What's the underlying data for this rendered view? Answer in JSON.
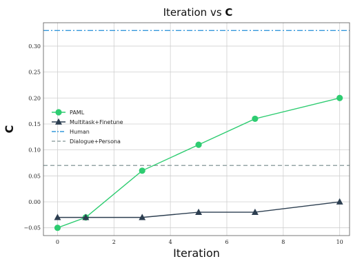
{
  "chart_data": {
    "type": "line",
    "title": "Iteration vs ",
    "title_bold": "C",
    "xlabel": "Iteration",
    "ylabel": "C",
    "xlim": [
      -0.5,
      10.35
    ],
    "ylim": [
      -0.065,
      0.345
    ],
    "xticks": [
      0,
      2,
      4,
      6,
      8,
      10
    ],
    "yticks": [
      -0.05,
      0.0,
      0.05,
      0.1,
      0.15,
      0.2,
      0.25,
      0.3
    ],
    "ytick_labels": [
      "−0.05",
      "0.00",
      "0.05",
      "0.10",
      "0.15",
      "0.20",
      "0.25",
      "0.30"
    ],
    "grid": true,
    "legend_position": "center-left",
    "series": [
      {
        "name": "PAML",
        "color": "#2ecc71",
        "marker": "circle",
        "x": [
          0,
          1,
          3,
          5,
          7,
          10
        ],
        "values": [
          -0.05,
          -0.03,
          0.06,
          0.11,
          0.16,
          0.2
        ]
      },
      {
        "name": "Multitask+Finetune",
        "color": "#2c3e50",
        "marker": "triangle",
        "x": [
          0,
          1,
          3,
          5,
          7,
          10
        ],
        "values": [
          -0.03,
          -0.03,
          -0.03,
          -0.02,
          -0.02,
          0.0
        ]
      }
    ],
    "reference_lines": [
      {
        "name": "Human",
        "color": "#3498db",
        "style": "dashdot",
        "value": 0.33
      },
      {
        "name": "Dialogue+Persona",
        "color": "#95a5a6",
        "style": "dashed",
        "value": 0.07
      }
    ]
  }
}
